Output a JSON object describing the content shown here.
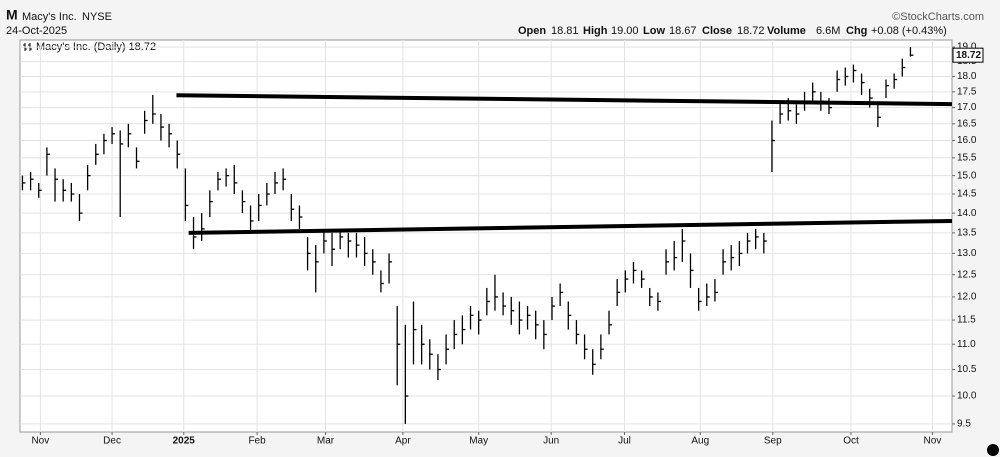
{
  "header": {
    "symbol": "M",
    "name": "Macy's Inc.",
    "exchange": "NYSE",
    "date": "24-Oct-2025",
    "source": "©StockCharts.com",
    "open_label": "Open",
    "open": "18.81",
    "high_label": "High",
    "high": "19.00",
    "low_label": "Low",
    "low": "18.67",
    "close_label": "Close",
    "close": "18.72",
    "volume_label": "Volume",
    "volume": "6.6M",
    "chg_label": "Chg",
    "chg": "+0.08 (+0.43%)",
    "legend": "Macy's Inc. (Daily) 18.72",
    "price_tag": "18.72"
  },
  "chart_data": {
    "type": "ohlc",
    "color": "#000000",
    "log": true,
    "grid": true,
    "high": [
      15.0,
      15.1,
      14.8,
      15.8,
      15.2,
      14.9,
      14.8,
      14.5,
      15.3,
      15.9,
      16.2,
      16.4,
      16.3,
      16.5,
      15.8,
      16.9,
      17.4,
      16.8,
      16.5,
      16.0,
      15.2,
      13.9,
      14.0,
      14.6,
      15.1,
      15.2,
      15.3,
      14.6,
      14.2,
      14.5,
      14.8,
      15.1,
      15.2,
      14.5,
      14.2,
      13.4,
      13.2,
      13.6,
      13.5,
      13.6,
      13.5,
      13.5,
      13.4,
      13.1,
      12.6,
      13.0,
      11.8,
      11.4,
      11.9,
      11.4,
      11.1,
      10.8,
      11.2,
      11.5,
      11.6,
      11.8,
      11.7,
      12.2,
      12.5,
      12.1,
      12.0,
      11.9,
      11.8,
      11.7,
      11.5,
      12.0,
      12.3,
      11.9,
      11.5,
      11.2,
      10.9,
      11.2,
      11.7,
      12.4,
      12.6,
      12.8,
      12.6,
      12.2,
      12.1,
      13.1,
      13.3,
      13.6,
      13.0,
      12.2,
      12.3,
      12.4,
      13.1,
      13.2,
      13.3,
      13.5,
      13.6,
      13.5,
      16.6,
      17.2,
      17.3,
      17.1,
      17.5,
      17.8,
      17.5,
      17.3,
      18.2,
      18.3,
      18.4,
      18.1,
      17.6,
      17.2,
      17.9,
      18.1,
      18.6,
      19.0
    ],
    "low": [
      14.6,
      14.6,
      14.4,
      15.0,
      14.3,
      14.3,
      14.3,
      13.8,
      14.6,
      15.3,
      15.6,
      15.9,
      13.9,
      15.8,
      15.2,
      16.2,
      16.5,
      16.0,
      15.8,
      15.2,
      13.8,
      13.1,
      13.3,
      13.9,
      14.6,
      14.7,
      14.5,
      14.0,
      13.5,
      13.8,
      14.2,
      14.5,
      14.6,
      13.8,
      13.6,
      12.6,
      12.1,
      13.0,
      12.7,
      13.1,
      12.9,
      12.9,
      12.7,
      12.5,
      12.1,
      12.3,
      10.2,
      9.5,
      10.6,
      10.6,
      10.5,
      10.3,
      10.6,
      10.9,
      11.0,
      11.3,
      11.2,
      11.6,
      11.7,
      11.6,
      11.4,
      11.2,
      11.3,
      11.1,
      10.9,
      11.5,
      11.8,
      11.3,
      11.0,
      10.7,
      10.4,
      10.7,
      11.2,
      11.8,
      12.1,
      12.3,
      12.2,
      11.8,
      11.7,
      12.5,
      12.6,
      12.8,
      12.2,
      11.7,
      11.8,
      11.9,
      12.5,
      12.6,
      12.7,
      13.0,
      13.1,
      13.0,
      15.1,
      16.5,
      16.6,
      16.5,
      16.9,
      17.2,
      16.9,
      16.8,
      17.5,
      17.7,
      17.8,
      17.4,
      17.0,
      16.4,
      17.3,
      17.6,
      18.0,
      18.67
    ],
    "close": [
      14.8,
      14.9,
      14.6,
      15.6,
      14.9,
      14.6,
      14.5,
      14.0,
      15.0,
      15.6,
      16.0,
      16.2,
      15.9,
      16.2,
      15.4,
      16.6,
      16.8,
      16.4,
      16.2,
      15.6,
      14.2,
      13.4,
      13.6,
      14.3,
      14.9,
      15.0,
      14.8,
      14.3,
      13.8,
      14.2,
      14.5,
      14.8,
      14.9,
      14.1,
      13.9,
      13.0,
      12.8,
      13.3,
      13.1,
      13.4,
      13.3,
      13.2,
      13.0,
      12.8,
      12.3,
      12.8,
      11.0,
      10.0,
      11.3,
      11.0,
      10.8,
      10.5,
      10.9,
      11.2,
      11.3,
      11.6,
      11.5,
      11.9,
      12.0,
      11.8,
      11.7,
      11.5,
      11.6,
      11.4,
      11.2,
      11.8,
      12.1,
      11.6,
      11.2,
      10.9,
      10.6,
      10.9,
      11.4,
      12.1,
      12.4,
      12.6,
      12.4,
      12.0,
      11.9,
      12.8,
      12.9,
      13.3,
      12.6,
      11.9,
      12.0,
      12.1,
      12.8,
      12.9,
      13.0,
      13.3,
      13.4,
      13.3,
      16.0,
      16.8,
      16.9,
      16.8,
      17.2,
      17.5,
      17.2,
      17.0,
      17.9,
      18.0,
      18.2,
      17.8,
      17.3,
      16.7,
      17.7,
      17.9,
      18.3,
      18.72
    ],
    "xlim": [
      -0.3,
      114.1
    ],
    "xticks": [
      {
        "value": 2.2,
        "label": "Nov"
      },
      {
        "value": 11.0,
        "label": "Dec"
      },
      {
        "value": 19.8,
        "label": "2025"
      },
      {
        "value": 28.8,
        "label": "Feb"
      },
      {
        "value": 37.2,
        "label": "Mar"
      },
      {
        "value": 46.7,
        "label": "Apr"
      },
      {
        "value": 56.0,
        "label": "May"
      },
      {
        "value": 64.9,
        "label": "Jun"
      },
      {
        "value": 73.9,
        "label": "Jul"
      },
      {
        "value": 83.2,
        "label": "Aug"
      },
      {
        "value": 92.1,
        "label": "Sep"
      },
      {
        "value": 101.7,
        "label": "Oct"
      },
      {
        "value": 111.7,
        "label": "Nov"
      }
    ],
    "ylim": [
      9.36,
      19.25
    ],
    "yticks": [
      9.5,
      {
        "value": 10,
        "label": "10.0"
      },
      10.5,
      {
        "value": 11,
        "label": "11.0"
      },
      11.5,
      {
        "value": 12,
        "label": "12.0"
      },
      12.5,
      {
        "value": 13,
        "label": "13.0"
      },
      13.5,
      {
        "value": 14,
        "label": "14.0"
      },
      14.5,
      {
        "value": 15,
        "label": "15.0"
      },
      15.5,
      {
        "value": 16,
        "label": "16.0"
      },
      16.5,
      {
        "value": 17,
        "label": "17.0"
      },
      17.5,
      {
        "value": 18,
        "label": "18.0"
      },
      18.5,
      {
        "value": 19,
        "label": "19.0"
      }
    ],
    "trendlines": [
      {
        "x": [
          18.9,
          114.1
        ],
        "values": [
          17.39,
          17.11
        ]
      },
      {
        "x": [
          20.4,
          114.1
        ],
        "values": [
          13.5,
          13.8
        ]
      }
    ]
  }
}
